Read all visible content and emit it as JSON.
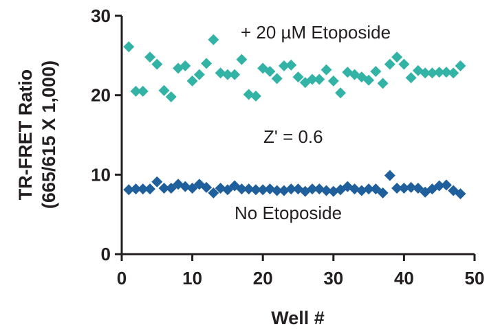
{
  "chart_data": {
    "type": "scatter",
    "xlabel": "Well #",
    "ylabel_line1": "TR-FRET Ratio",
    "ylabel_line2": "(665/615 X 1,000)",
    "xlim": [
      0,
      50
    ],
    "ylim": [
      0,
      30
    ],
    "xticks": [
      0,
      10,
      20,
      30,
      40,
      50
    ],
    "yticks": [
      0,
      10,
      20,
      30
    ],
    "grid": false,
    "annotations": {
      "etoposide": "+ 20 µM Etoposide",
      "zprime": "Z' = 0.6",
      "no_etoposide": "No Etoposide"
    },
    "series": [
      {
        "color": "#33b3a6",
        "marker": "diamond",
        "x": [
          1,
          2,
          3,
          4,
          5,
          6,
          7,
          8,
          9,
          10,
          11,
          12,
          13,
          14,
          15,
          16,
          17,
          18,
          19,
          20,
          21,
          22,
          23,
          24,
          25,
          26,
          27,
          28,
          29,
          30,
          31,
          32,
          33,
          34,
          35,
          36,
          37,
          38,
          39,
          40,
          41,
          42,
          43,
          44,
          45,
          46,
          47,
          48
        ],
        "y": [
          26.1,
          20.5,
          20.5,
          24.8,
          23.9,
          20.6,
          19.8,
          23.4,
          23.7,
          21.8,
          22.6,
          24.0,
          27.0,
          22.8,
          22.6,
          22.6,
          24.5,
          20.1,
          19.9,
          23.4,
          23.0,
          22.1,
          23.7,
          23.8,
          22.3,
          21.6,
          22.0,
          22.0,
          23.2,
          21.8,
          20.3,
          22.9,
          22.6,
          22.3,
          21.9,
          23.0,
          21.5,
          23.9,
          24.8,
          23.9,
          22.2,
          23.1,
          22.8,
          22.8,
          22.9,
          22.9,
          22.8,
          23.7
        ]
      },
      {
        "color": "#1e5f9c",
        "marker": "diamond",
        "x": [
          1,
          2,
          3,
          4,
          5,
          6,
          7,
          8,
          9,
          10,
          11,
          12,
          13,
          14,
          15,
          16,
          17,
          18,
          19,
          20,
          21,
          22,
          23,
          24,
          25,
          26,
          27,
          28,
          29,
          30,
          31,
          32,
          33,
          34,
          35,
          36,
          37,
          38,
          39,
          40,
          41,
          42,
          43,
          44,
          45,
          46,
          47,
          48
        ],
        "y": [
          8.1,
          8.2,
          8.2,
          8.2,
          9.1,
          8.3,
          8.3,
          8.8,
          8.5,
          8.3,
          8.8,
          8.4,
          7.7,
          8.3,
          8.1,
          8.6,
          8.2,
          8.2,
          8.1,
          8.1,
          8.2,
          8.0,
          8.0,
          8.2,
          8.2,
          7.9,
          8.2,
          8.2,
          8.0,
          7.9,
          8.1,
          8.5,
          8.2,
          8.0,
          8.2,
          8.2,
          7.7,
          9.9,
          8.3,
          8.3,
          8.4,
          8.3,
          7.8,
          8.2,
          8.6,
          8.7,
          8.0,
          7.6
        ]
      }
    ]
  }
}
